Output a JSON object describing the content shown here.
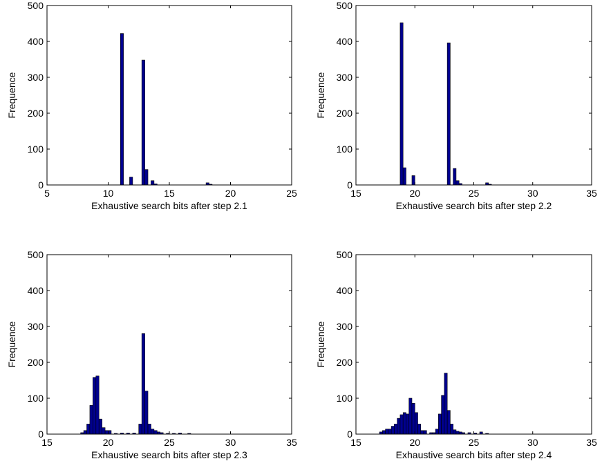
{
  "chart_data": [
    {
      "type": "bar",
      "title": "",
      "xlabel": "Exhaustive search bits after step 2.1",
      "ylabel": "Frequence",
      "xlim": [
        5,
        25
      ],
      "ylim": [
        0,
        500
      ],
      "xticks": [
        "5",
        "10",
        "15",
        "20",
        "25"
      ],
      "yticks": [
        "0",
        "100",
        "200",
        "300",
        "400",
        "500"
      ],
      "bin_width": 0.25,
      "bar_color": "#00008f",
      "edge_color": "#000000",
      "bins": [
        {
          "x": 11.0,
          "y": 422
        },
        {
          "x": 11.75,
          "y": 22
        },
        {
          "x": 12.75,
          "y": 348
        },
        {
          "x": 13.0,
          "y": 43
        },
        {
          "x": 13.5,
          "y": 12
        },
        {
          "x": 13.75,
          "y": 3
        },
        {
          "x": 18.0,
          "y": 6
        },
        {
          "x": 18.25,
          "y": 2
        }
      ]
    },
    {
      "type": "bar",
      "title": "",
      "xlabel": "Exhaustive search bits after step 2.2",
      "ylabel": "Frequence",
      "xlim": [
        15,
        35
      ],
      "ylim": [
        0,
        500
      ],
      "xticks": [
        "15",
        "20",
        "25",
        "30",
        "35"
      ],
      "yticks": [
        "0",
        "100",
        "200",
        "300",
        "400",
        "500"
      ],
      "bin_width": 0.25,
      "bar_color": "#00008f",
      "edge_color": "#000000",
      "bins": [
        {
          "x": 18.75,
          "y": 452
        },
        {
          "x": 19.0,
          "y": 48
        },
        {
          "x": 19.75,
          "y": 26
        },
        {
          "x": 22.75,
          "y": 396
        },
        {
          "x": 23.25,
          "y": 46
        },
        {
          "x": 23.5,
          "y": 12
        },
        {
          "x": 23.75,
          "y": 4
        },
        {
          "x": 26.0,
          "y": 6
        },
        {
          "x": 26.25,
          "y": 2
        }
      ]
    },
    {
      "type": "bar",
      "title": "",
      "xlabel": "Exhaustive search bits after step 2.3",
      "ylabel": "Frequence",
      "xlim": [
        15,
        35
      ],
      "ylim": [
        0,
        500
      ],
      "xticks": [
        "15",
        "20",
        "25",
        "30",
        "35"
      ],
      "yticks": [
        "0",
        "100",
        "200",
        "300",
        "400",
        "500"
      ],
      "bin_width": 0.25,
      "bar_color": "#00008f",
      "edge_color": "#000000",
      "bins": [
        {
          "x": 17.75,
          "y": 4
        },
        {
          "x": 18.0,
          "y": 10
        },
        {
          "x": 18.25,
          "y": 28
        },
        {
          "x": 18.5,
          "y": 80
        },
        {
          "x": 18.75,
          "y": 158
        },
        {
          "x": 19.0,
          "y": 162
        },
        {
          "x": 19.25,
          "y": 42
        },
        {
          "x": 19.5,
          "y": 18
        },
        {
          "x": 19.75,
          "y": 10
        },
        {
          "x": 20.0,
          "y": 10
        },
        {
          "x": 20.5,
          "y": 2
        },
        {
          "x": 21.0,
          "y": 3
        },
        {
          "x": 21.5,
          "y": 3
        },
        {
          "x": 22.0,
          "y": 3
        },
        {
          "x": 22.5,
          "y": 28
        },
        {
          "x": 22.75,
          "y": 280
        },
        {
          "x": 23.0,
          "y": 120
        },
        {
          "x": 23.25,
          "y": 28
        },
        {
          "x": 23.5,
          "y": 14
        },
        {
          "x": 23.75,
          "y": 10
        },
        {
          "x": 24.0,
          "y": 6
        },
        {
          "x": 24.25,
          "y": 4
        },
        {
          "x": 24.75,
          "y": 2
        },
        {
          "x": 25.25,
          "y": 2
        },
        {
          "x": 25.75,
          "y": 3
        },
        {
          "x": 26.5,
          "y": 2
        }
      ]
    },
    {
      "type": "bar",
      "title": "",
      "xlabel": "Exhaustive search bits after step 2.4",
      "ylabel": "Frequence",
      "xlim": [
        15,
        35
      ],
      "ylim": [
        0,
        500
      ],
      "xticks": [
        "15",
        "20",
        "25",
        "30",
        "35"
      ],
      "yticks": [
        "0",
        "100",
        "200",
        "300",
        "400",
        "500"
      ],
      "bin_width": 0.25,
      "bar_color": "#00008f",
      "edge_color": "#000000",
      "bins": [
        {
          "x": 17.0,
          "y": 6
        },
        {
          "x": 17.25,
          "y": 10
        },
        {
          "x": 17.5,
          "y": 14
        },
        {
          "x": 17.75,
          "y": 14
        },
        {
          "x": 18.0,
          "y": 22
        },
        {
          "x": 18.25,
          "y": 28
        },
        {
          "x": 18.5,
          "y": 44
        },
        {
          "x": 18.75,
          "y": 54
        },
        {
          "x": 19.0,
          "y": 60
        },
        {
          "x": 19.25,
          "y": 56
        },
        {
          "x": 19.5,
          "y": 100
        },
        {
          "x": 19.75,
          "y": 86
        },
        {
          "x": 20.0,
          "y": 60
        },
        {
          "x": 20.25,
          "y": 28
        },
        {
          "x": 20.5,
          "y": 10
        },
        {
          "x": 20.75,
          "y": 10
        },
        {
          "x": 21.25,
          "y": 4
        },
        {
          "x": 21.5,
          "y": 4
        },
        {
          "x": 21.75,
          "y": 14
        },
        {
          "x": 22.0,
          "y": 56
        },
        {
          "x": 22.25,
          "y": 108
        },
        {
          "x": 22.5,
          "y": 170
        },
        {
          "x": 22.75,
          "y": 66
        },
        {
          "x": 23.0,
          "y": 28
        },
        {
          "x": 23.25,
          "y": 12
        },
        {
          "x": 23.5,
          "y": 8
        },
        {
          "x": 23.75,
          "y": 6
        },
        {
          "x": 24.0,
          "y": 4
        },
        {
          "x": 24.5,
          "y": 4
        },
        {
          "x": 25.0,
          "y": 3
        },
        {
          "x": 25.5,
          "y": 6
        },
        {
          "x": 26.0,
          "y": 2
        }
      ]
    }
  ]
}
